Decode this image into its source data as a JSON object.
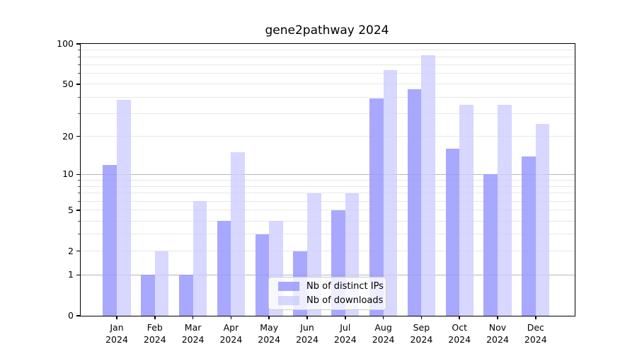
{
  "chart_data": {
    "type": "bar",
    "title": "gene2pathway 2024",
    "scale": "log1p",
    "grid": true,
    "legend_position": "lower center",
    "categories": [
      "Jan",
      "Feb",
      "Mar",
      "Apr",
      "May",
      "Jun",
      "Jul",
      "Aug",
      "Sep",
      "Oct",
      "Nov",
      "Dec"
    ],
    "year": "2024",
    "series": [
      {
        "name": "Nb of distinct IPs",
        "color": "#9999ff",
        "alpha": 0.85,
        "values": [
          12,
          1,
          1,
          4,
          3,
          2,
          5,
          39,
          46,
          16,
          10,
          14
        ]
      },
      {
        "name": "Nb of downloads",
        "color": "#ccccff",
        "alpha": 0.78,
        "values": [
          38,
          2,
          6,
          15,
          4,
          7,
          7,
          64,
          82,
          35,
          35,
          25
        ]
      }
    ],
    "ylim": [
      0,
      100
    ],
    "yticks": [
      0,
      1,
      2,
      5,
      10,
      20,
      50,
      100
    ],
    "major_gridlines": [
      1,
      10
    ],
    "minor_gridlines": [
      2,
      3,
      4,
      5,
      6,
      7,
      8,
      9,
      20,
      30,
      40,
      50,
      60,
      70,
      80,
      90
    ],
    "xlabel": "",
    "ylabel": ""
  },
  "colors": {
    "major_grid": "#b6b6b6",
    "minor_grid": "#e7e7e7",
    "axis": "#000000",
    "legend_border": "#cccccc"
  }
}
